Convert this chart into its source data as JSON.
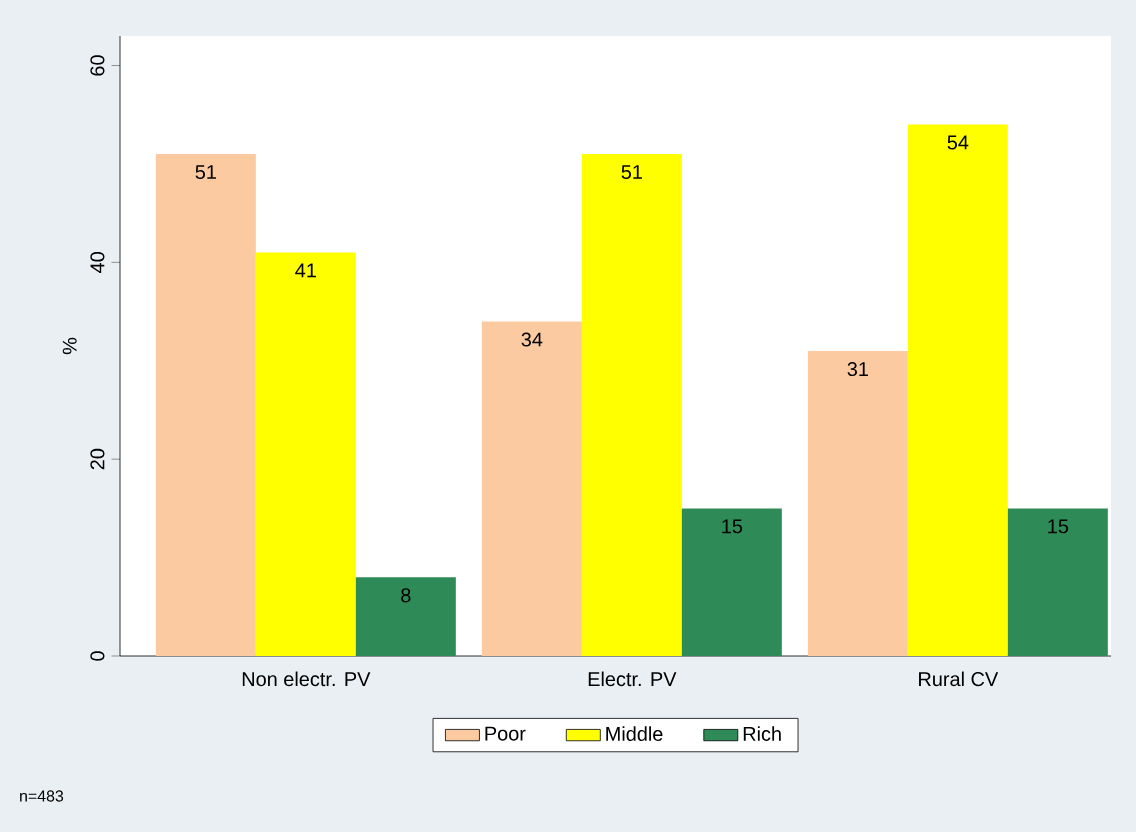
{
  "chart_data": {
    "type": "bar",
    "categories": [
      "Non  electr. PV",
      "Electr. PV",
      "Rural CV"
    ],
    "series": [
      {
        "name": "Poor",
        "color": "#fbcaa0",
        "values": [
          51,
          34,
          31
        ]
      },
      {
        "name": "Middle",
        "color": "#ffff00",
        "values": [
          41,
          51,
          54
        ]
      },
      {
        "name": "Rich",
        "color": "#2e8b57",
        "values": [
          8,
          15,
          15
        ]
      }
    ],
    "ylabel": "%",
    "ylim": [
      0,
      63
    ],
    "yticks": [
      0,
      20,
      40,
      60
    ],
    "data_labels": true,
    "legend": "bottom",
    "grid": false,
    "annotations": [
      "n=483"
    ]
  }
}
